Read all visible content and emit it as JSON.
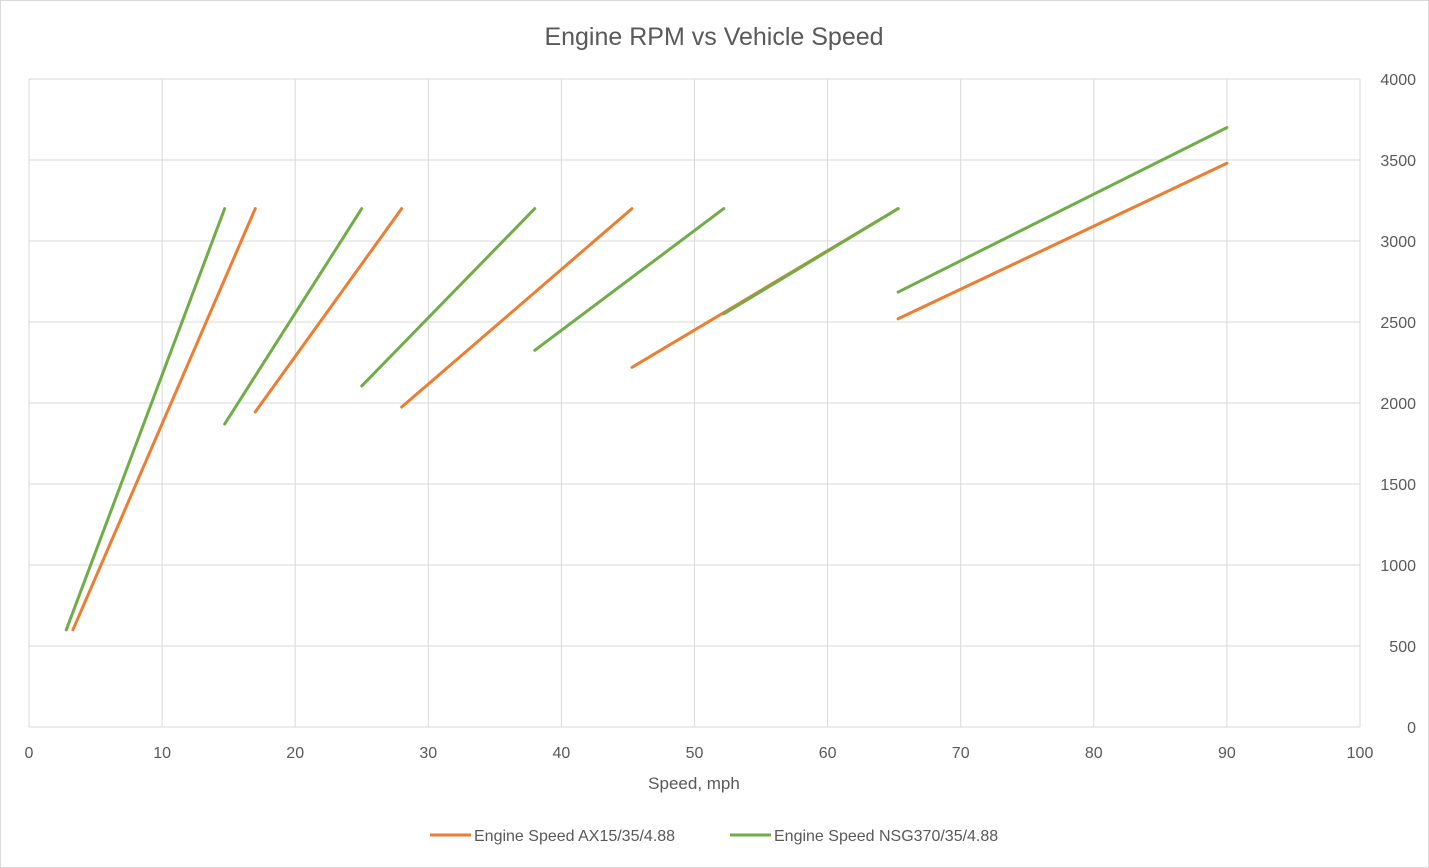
{
  "chart_data": {
    "type": "line",
    "title": "Engine RPM vs Vehicle Speed",
    "xlabel": "Speed, mph",
    "ylabel": "",
    "xlim": [
      0,
      100
    ],
    "ylim": [
      0,
      4000
    ],
    "x_ticks": [
      0,
      10,
      20,
      30,
      40,
      50,
      60,
      70,
      80,
      90,
      100
    ],
    "y_ticks": [
      0,
      500,
      1000,
      1500,
      2000,
      2500,
      3000,
      3500,
      4000
    ],
    "y_axis_position": "right",
    "grid": true,
    "legend_position": "bottom",
    "series": [
      {
        "name": "Engine Speed AX15/35/4.88",
        "color": "#ED7D31",
        "segments": [
          [
            [
              3.3,
              600
            ],
            [
              17.0,
              3200
            ]
          ],
          [
            [
              17.0,
              1945
            ],
            [
              28.0,
              3200
            ]
          ],
          [
            [
              28.0,
              1975
            ],
            [
              45.3,
              3200
            ]
          ],
          [
            [
              45.3,
              2220
            ],
            [
              65.3,
              3200
            ]
          ],
          [
            [
              65.3,
              2520
            ],
            [
              90.0,
              3480
            ]
          ]
        ]
      },
      {
        "name": "Engine Speed NSG370/35/4.88",
        "color": "#70AD47",
        "segments": [
          [
            [
              2.8,
              600
            ],
            [
              14.7,
              3200
            ]
          ],
          [
            [
              14.7,
              1870
            ],
            [
              25.0,
              3200
            ]
          ],
          [
            [
              25.0,
              2105
            ],
            [
              38.0,
              3200
            ]
          ],
          [
            [
              38.0,
              2325
            ],
            [
              52.2,
              3200
            ]
          ],
          [
            [
              52.2,
              2550
            ],
            [
              65.3,
              3200
            ]
          ],
          [
            [
              65.3,
              2685
            ],
            [
              90.0,
              3700
            ]
          ]
        ]
      }
    ]
  }
}
